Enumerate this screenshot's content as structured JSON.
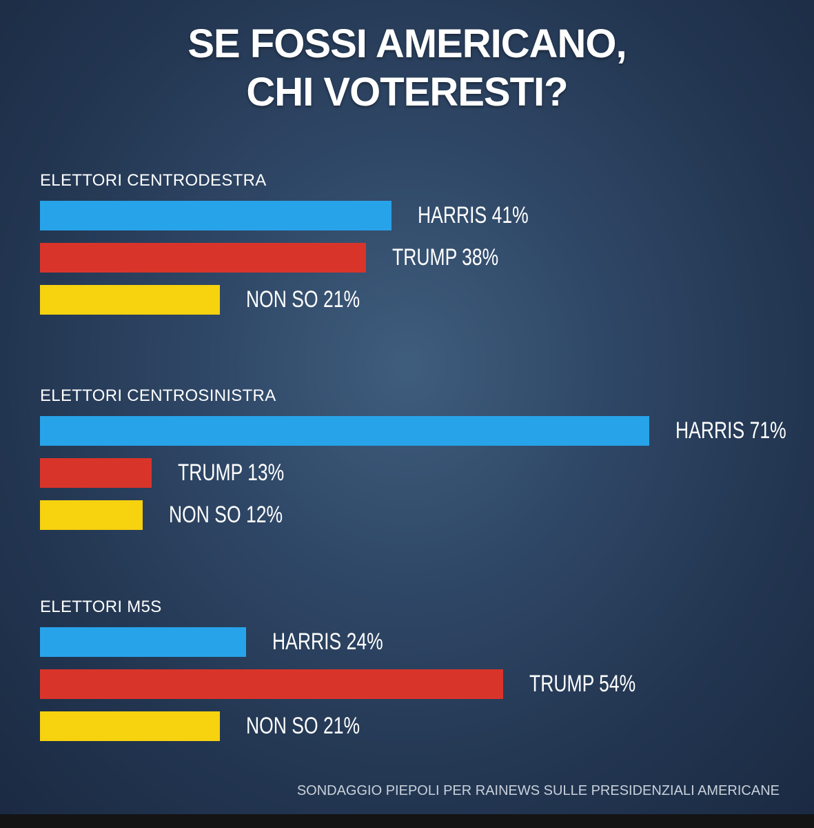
{
  "title_lines": [
    "SE FOSSI AMERICANO,",
    "CHI VOTERESTI?"
  ],
  "source": "SONDAGGIO PIEPOLI PER RAINEWS SULLE PRESIDENZIALI AMERICANE",
  "colors": {
    "harris": "#27a3ea",
    "trump": "#d9342a",
    "non_so": "#f6d20f"
  },
  "chart_data": {
    "type": "bar",
    "orientation": "horizontal",
    "title": "SE FOSSI AMERICANO, CHI VOTERESTI?",
    "groups": [
      {
        "name": "ELETTORI CENTRODESTRA",
        "bars": [
          {
            "key": "harris",
            "label": "HARRIS 41%",
            "value": 41
          },
          {
            "key": "trump",
            "label": "TRUMP 38%",
            "value": 38
          },
          {
            "key": "non_so",
            "label": "NON SO 21%",
            "value": 21
          }
        ]
      },
      {
        "name": "ELETTORI CENTROSINISTRA",
        "bars": [
          {
            "key": "harris",
            "label": "HARRIS 71%",
            "value": 71
          },
          {
            "key": "trump",
            "label": "TRUMP 13%",
            "value": 13
          },
          {
            "key": "non_so",
            "label": "NON SO 12%",
            "value": 12
          }
        ]
      },
      {
        "name": "ELETTORI M5S",
        "bars": [
          {
            "key": "harris",
            "label": "HARRIS 24%",
            "value": 24
          },
          {
            "key": "trump",
            "label": "TRUMP 54%",
            "value": 54
          },
          {
            "key": "non_so",
            "label": "NON SO 21%",
            "value": 21
          }
        ]
      }
    ]
  }
}
